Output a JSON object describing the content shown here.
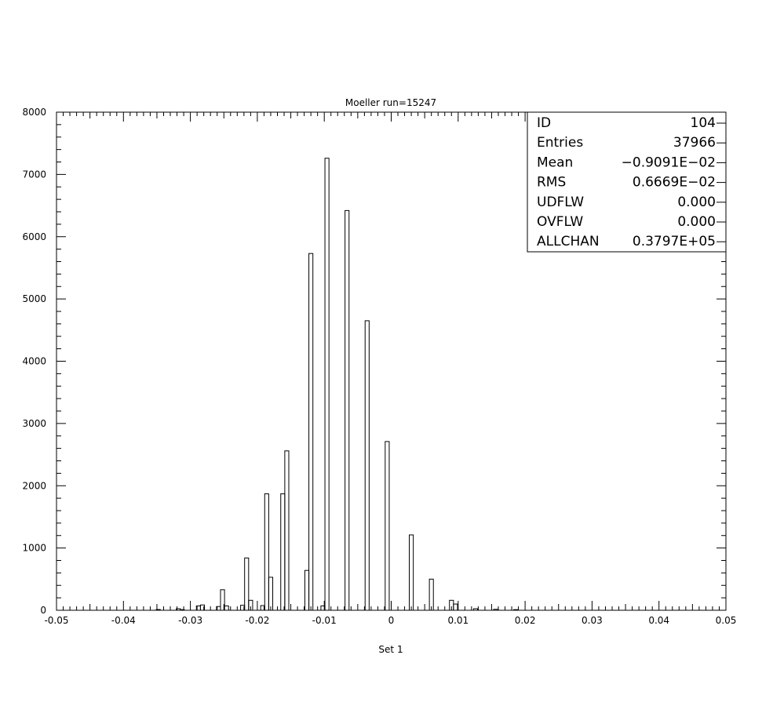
{
  "chart_data": {
    "type": "bar",
    "title": "Moeller run=15247",
    "xlabel": "Set 1",
    "ylabel": "",
    "xlim": [
      -0.05,
      0.05
    ],
    "ylim": [
      0,
      8000
    ],
    "x_ticks": [
      "-0.05",
      "-0.04",
      "-0.03",
      "-0.02",
      "-0.01",
      "0",
      "0.01",
      "0.02",
      "0.03",
      "0.04",
      "0.05"
    ],
    "y_ticks": [
      "0",
      "1000",
      "2000",
      "3000",
      "4000",
      "5000",
      "6000",
      "7000",
      "8000"
    ],
    "bins": [
      {
        "x": -0.0348,
        "y": 12
      },
      {
        "x": -0.0318,
        "y": 25
      },
      {
        "x": -0.0312,
        "y": 10
      },
      {
        "x": -0.0288,
        "y": 70
      },
      {
        "x": -0.0282,
        "y": 85
      },
      {
        "x": -0.0258,
        "y": 60
      },
      {
        "x": -0.0252,
        "y": 330
      },
      {
        "x": -0.0246,
        "y": 70
      },
      {
        "x": -0.0222,
        "y": 80
      },
      {
        "x": -0.0216,
        "y": 840
      },
      {
        "x": -0.021,
        "y": 160
      },
      {
        "x": -0.0192,
        "y": 75
      },
      {
        "x": -0.0186,
        "y": 1870
      },
      {
        "x": -0.018,
        "y": 530
      },
      {
        "x": -0.0162,
        "y": 1870
      },
      {
        "x": -0.0156,
        "y": 2560
      },
      {
        "x": -0.0126,
        "y": 640
      },
      {
        "x": -0.012,
        "y": 5730
      },
      {
        "x": -0.0102,
        "y": 70
      },
      {
        "x": -0.0096,
        "y": 7260
      },
      {
        "x": -0.0066,
        "y": 6420
      },
      {
        "x": -0.0036,
        "y": 4650
      },
      {
        "x": -0.0006,
        "y": 2710
      },
      {
        "x": 0.003,
        "y": 1210
      },
      {
        "x": 0.006,
        "y": 500
      },
      {
        "x": 0.009,
        "y": 160
      },
      {
        "x": 0.0096,
        "y": 100
      },
      {
        "x": 0.0126,
        "y": 25
      },
      {
        "x": 0.0156,
        "y": 15
      },
      {
        "x": 0.0186,
        "y": 10
      }
    ],
    "stats_box": [
      {
        "key": "ID",
        "value": "104"
      },
      {
        "key": "Entries",
        "value": "37966"
      },
      {
        "key": "Mean",
        "value": "−0.9091E−02"
      },
      {
        "key": "RMS",
        "value": "0.6669E−02"
      },
      {
        "key": "UDFLW",
        "value": "0.000"
      },
      {
        "key": "OVFLW",
        "value": "0.000"
      },
      {
        "key": "ALLCHAN",
        "value": "0.3797E+05"
      }
    ],
    "legend": "top-right",
    "grid": false
  }
}
